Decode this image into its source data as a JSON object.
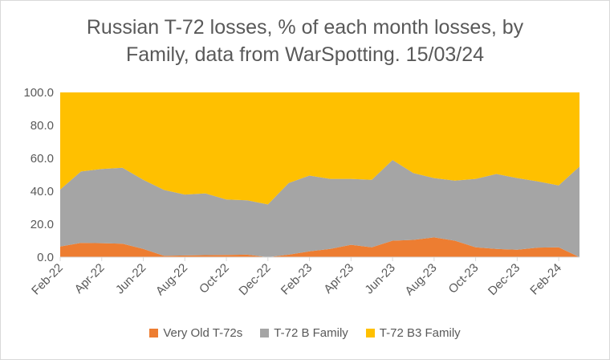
{
  "chart_data": {
    "type": "area",
    "stacked": true,
    "title": "Russian T-72 losses, % of each month losses, by Family, data from WarSpotting. 15/03/24",
    "title_lines": [
      "Russian T-72 losses, % of each month losses, by",
      "Family, data from WarSpotting. 15/03/24"
    ],
    "x": [
      "Feb-22",
      "Mar-22",
      "Apr-22",
      "May-22",
      "Jun-22",
      "Jul-22",
      "Aug-22",
      "Sep-22",
      "Oct-22",
      "Nov-22",
      "Dec-22",
      "Jan-23",
      "Feb-23",
      "Mar-23",
      "Apr-23",
      "May-23",
      "Jun-23",
      "Jul-23",
      "Aug-23",
      "Sep-23",
      "Oct-23",
      "Nov-23",
      "Dec-23",
      "Jan-24",
      "Feb-24",
      "Mar-24"
    ],
    "x_tick_labels": [
      "Feb-22",
      "Apr-22",
      "Jun-22",
      "Aug-22",
      "Oct-22",
      "Dec-22",
      "Feb-23",
      "Apr-23",
      "Jun-23",
      "Aug-23",
      "Oct-23",
      "Dec-23",
      "Feb-24"
    ],
    "ylim": [
      0,
      100
    ],
    "y_ticks": [
      "0.0",
      "20.0",
      "40.0",
      "60.0",
      "80.0",
      "100.0"
    ],
    "series": [
      {
        "name": "Very Old T-72s",
        "color": "#ED7D31",
        "values": [
          6.5,
          8.7,
          8.5,
          8.2,
          5.0,
          0.8,
          1.0,
          1.2,
          1.3,
          1.5,
          0.0,
          1.5,
          3.5,
          5.0,
          7.5,
          6.0,
          10.0,
          10.5,
          12.0,
          10.0,
          6.0,
          5.0,
          4.5,
          5.8,
          6.0,
          0.0
        ]
      },
      {
        "name": "T-72 B Family",
        "color": "#A5A5A5",
        "values": [
          34.5,
          43.3,
          45.0,
          46.1,
          42.0,
          40.0,
          37.0,
          37.5,
          33.7,
          33.0,
          32.0,
          43.5,
          46.0,
          42.5,
          40.0,
          41.0,
          49.0,
          40.5,
          36.0,
          36.5,
          41.5,
          45.5,
          43.5,
          40.2,
          37.5,
          55.0
        ]
      },
      {
        "name": "T-72 B3 Family",
        "color": "#FFC000",
        "values": [
          59.0,
          48.0,
          46.5,
          45.7,
          53.0,
          59.2,
          62.0,
          61.3,
          65.0,
          65.5,
          68.0,
          55.0,
          50.5,
          52.5,
          52.5,
          53.0,
          41.0,
          49.0,
          52.0,
          53.5,
          52.5,
          49.5,
          52.0,
          54.0,
          56.5,
          45.0
        ]
      }
    ],
    "legend_position": "bottom",
    "grid": false
  }
}
